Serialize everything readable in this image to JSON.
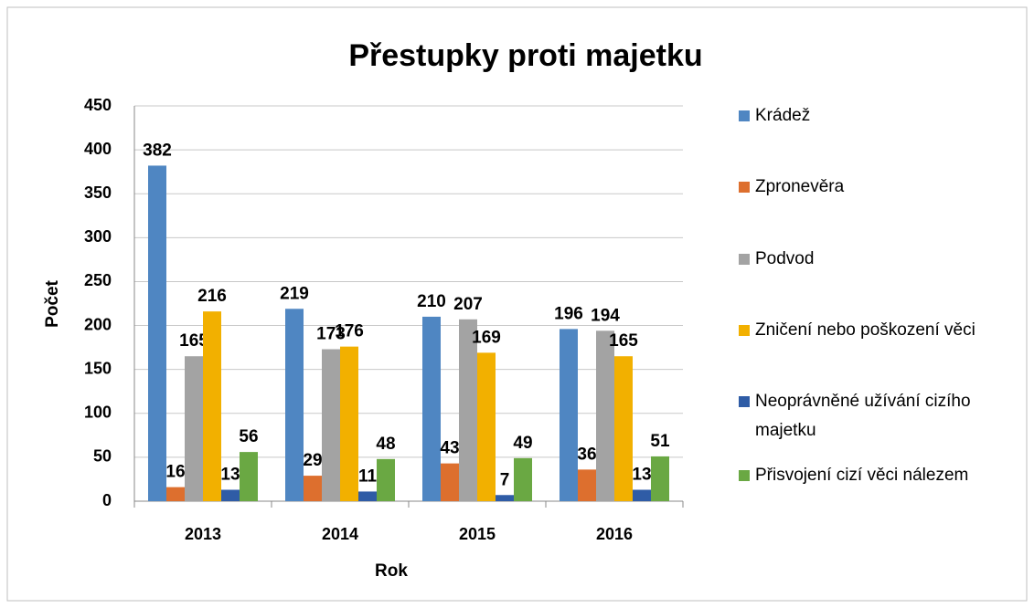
{
  "chart_data": {
    "type": "bar",
    "title": "Přestupky proti majetku",
    "x_label": "Rok",
    "y_label": "Počet",
    "categories": [
      "2013",
      "2014",
      "2015",
      "2016"
    ],
    "series": [
      {
        "name": "Krádež",
        "color": "#4f86c2",
        "values": [
          382,
          219,
          210,
          196
        ]
      },
      {
        "name": "Zpronevěra",
        "color": "#dd6f2e",
        "values": [
          16,
          29,
          43,
          36
        ]
      },
      {
        "name": "Podvod",
        "color": "#a3a3a3",
        "values": [
          165,
          173,
          207,
          194
        ]
      },
      {
        "name": "Zničení nebo poškození věci",
        "color": "#f2b000",
        "values": [
          216,
          176,
          169,
          165
        ]
      },
      {
        "name": "Neoprávněné užívání cizího majetku",
        "color": "#2f5ca6",
        "values": [
          13,
          11,
          7,
          13
        ]
      },
      {
        "name": "Přisvojení cizí věci nálezem",
        "color": "#6aa843",
        "values": [
          56,
          48,
          49,
          51
        ]
      }
    ],
    "ylim": [
      0,
      450
    ],
    "yticks": [
      0,
      50,
      100,
      150,
      200,
      250,
      300,
      350,
      400,
      450
    ],
    "grid": true,
    "legend": "right"
  }
}
